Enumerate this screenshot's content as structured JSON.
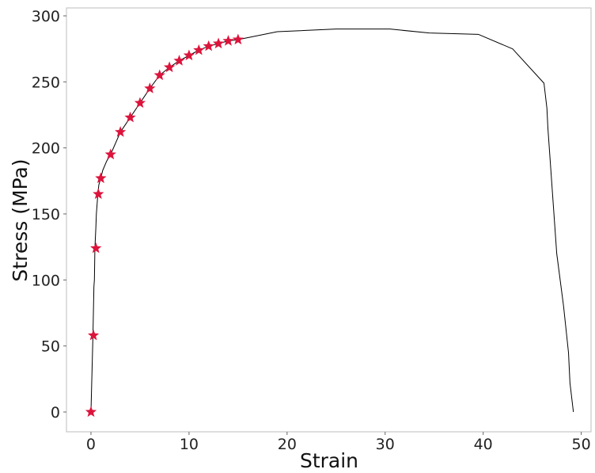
{
  "chart_data": {
    "type": "line",
    "title": "",
    "xlabel": "Strain",
    "ylabel": "Stress (MPa)",
    "xlim": [
      -2.5,
      51
    ],
    "ylim": [
      -15,
      306
    ],
    "xticks": [
      0,
      10,
      20,
      30,
      40,
      50
    ],
    "yticks": [
      0,
      50,
      100,
      150,
      200,
      250,
      300
    ],
    "grid": false,
    "legend": "none",
    "series": [
      {
        "kind": "line",
        "color": "#000000",
        "x": [
          0,
          0.2,
          0.3,
          0.35,
          0.4,
          0.5,
          0.55,
          0.6,
          0.7,
          0.8,
          1.0,
          1.2,
          1.6,
          2,
          3,
          4,
          5,
          6,
          7,
          8,
          9,
          10,
          11,
          12,
          13,
          14,
          15,
          19,
          25,
          30.5,
          34.5,
          39.5,
          43,
          46.2,
          46.5,
          46.6,
          47.5,
          48.2,
          48.7,
          48.85,
          49.2
        ],
        "y": [
          0,
          58,
          95,
          100,
          124,
          140,
          150,
          155,
          165,
          172,
          177,
          183,
          190,
          195,
          212,
          223,
          234,
          245,
          255,
          261,
          266,
          270,
          274,
          277,
          279,
          281,
          282,
          288,
          290,
          290,
          287,
          286,
          275,
          249,
          230,
          215,
          120,
          80,
          45,
          22,
          0
        ]
      },
      {
        "kind": "scatter",
        "marker": "star",
        "color": "#dc143c",
        "x": [
          0,
          0.25,
          0.5,
          0.75,
          1,
          2,
          3,
          4,
          5,
          6,
          7,
          8,
          9,
          10,
          11,
          12,
          13,
          14,
          15
        ],
        "y": [
          0,
          58,
          124,
          165,
          177,
          195,
          212,
          223,
          234,
          245,
          255,
          261,
          266,
          270,
          274,
          277,
          279,
          281,
          282
        ]
      }
    ]
  }
}
